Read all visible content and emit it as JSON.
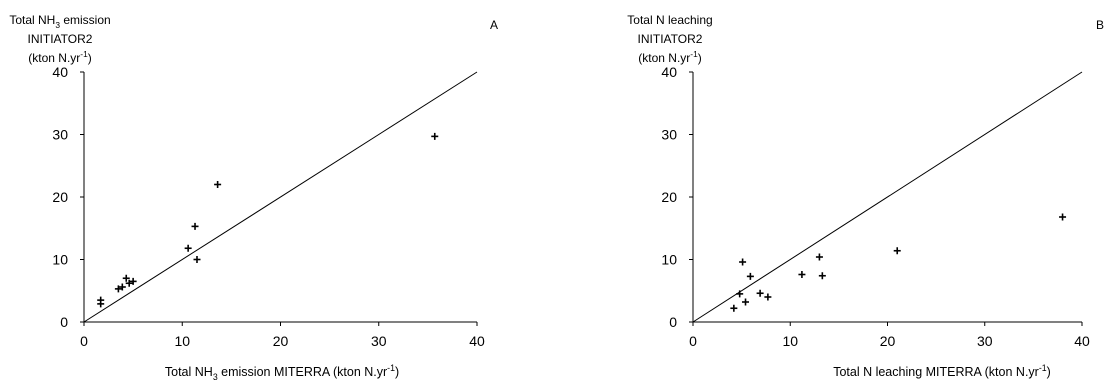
{
  "chart_data": [
    {
      "type": "scatter",
      "panel": "A",
      "title_lines": [
        "Total NH|3| emission",
        "INITIATOR2",
        "(kton N.yr^-1^)"
      ],
      "xlabel": "Total NH|3| emission MITERRA (kton N.yr^-1^)",
      "xlim": [
        0,
        40
      ],
      "ylim": [
        0,
        40
      ],
      "xticks": [
        0,
        10,
        20,
        30,
        40
      ],
      "yticks": [
        0,
        10,
        20,
        30,
        40
      ],
      "reference_line": "1:1",
      "marker": "plus",
      "points": [
        {
          "x": 1.7,
          "y": 3.5
        },
        {
          "x": 1.7,
          "y": 2.9
        },
        {
          "x": 3.5,
          "y": 5.3
        },
        {
          "x": 3.9,
          "y": 5.6
        },
        {
          "x": 4.3,
          "y": 7.0
        },
        {
          "x": 4.6,
          "y": 6.2
        },
        {
          "x": 5.0,
          "y": 6.5
        },
        {
          "x": 10.6,
          "y": 11.8
        },
        {
          "x": 11.3,
          "y": 15.3
        },
        {
          "x": 11.5,
          "y": 10.0
        },
        {
          "x": 13.6,
          "y": 22.0
        },
        {
          "x": 35.7,
          "y": 29.7
        }
      ]
    },
    {
      "type": "scatter",
      "panel": "B",
      "title_lines": [
        "Total N leaching",
        "INITIATOR2",
        "(kton N.yr^-1^)"
      ],
      "xlabel": "Total N leaching MITERRA (kton N.yr^-1^)",
      "xlim": [
        0,
        40
      ],
      "ylim": [
        0,
        40
      ],
      "xticks": [
        0,
        10,
        20,
        30,
        40
      ],
      "yticks": [
        0,
        10,
        20,
        30,
        40
      ],
      "reference_line": "1:1",
      "marker": "plus",
      "points": [
        {
          "x": 4.2,
          "y": 2.2
        },
        {
          "x": 4.8,
          "y": 4.5
        },
        {
          "x": 5.1,
          "y": 9.6
        },
        {
          "x": 5.4,
          "y": 3.2
        },
        {
          "x": 5.9,
          "y": 7.3
        },
        {
          "x": 6.9,
          "y": 4.6
        },
        {
          "x": 7.7,
          "y": 4.0
        },
        {
          "x": 11.2,
          "y": 7.6
        },
        {
          "x": 13.0,
          "y": 10.4
        },
        {
          "x": 13.3,
          "y": 7.4
        },
        {
          "x": 21.0,
          "y": 11.4
        },
        {
          "x": 38.0,
          "y": 16.8
        }
      ]
    }
  ]
}
